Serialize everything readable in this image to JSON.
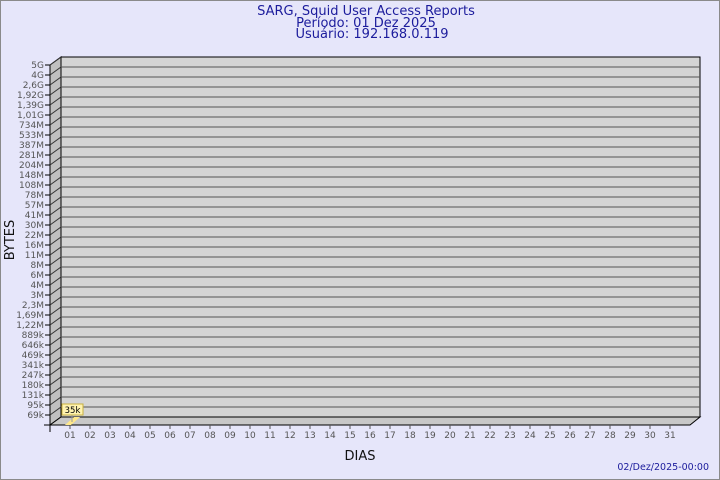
{
  "header": {
    "title": "SARG, Squid User Access Reports",
    "period": "Período: 01 Dez 2025",
    "user": "Usuário: 192.168.0.119"
  },
  "footer": {
    "timestamp": "02/Dez/2025-00:00"
  },
  "colors": {
    "background": "#e6e6fa",
    "plot": "#d4d4d4",
    "bar": "#ffe88a",
    "title": "#1c1c9c"
  },
  "chart_data": {
    "type": "bar",
    "xlabel": "DIAS",
    "ylabel": "BYTES",
    "y_scale": "log",
    "grid": true,
    "y_tick_labels": [
      "5G",
      "4G",
      "2,6G",
      "1,92G",
      "1,39G",
      "1,01G",
      "734M",
      "533M",
      "387M",
      "281M",
      "204M",
      "148M",
      "108M",
      "78M",
      "57M",
      "41M",
      "30M",
      "22M",
      "16M",
      "11M",
      "8M",
      "6M",
      "4M",
      "3M",
      "2,3M",
      "1,69M",
      "1,22M",
      "889k",
      "646k",
      "469k",
      "341k",
      "247k",
      "180k",
      "131k",
      "95k",
      "69k"
    ],
    "categories": [
      "01",
      "02",
      "03",
      "04",
      "05",
      "06",
      "07",
      "08",
      "09",
      "10",
      "11",
      "12",
      "13",
      "14",
      "15",
      "16",
      "17",
      "18",
      "19",
      "20",
      "21",
      "22",
      "23",
      "24",
      "25",
      "26",
      "27",
      "28",
      "29",
      "30",
      "31"
    ],
    "values": [
      35000,
      null,
      null,
      null,
      null,
      null,
      null,
      null,
      null,
      null,
      null,
      null,
      null,
      null,
      null,
      null,
      null,
      null,
      null,
      null,
      null,
      null,
      null,
      null,
      null,
      null,
      null,
      null,
      null,
      null,
      null
    ],
    "data_labels": [
      "35k"
    ]
  }
}
